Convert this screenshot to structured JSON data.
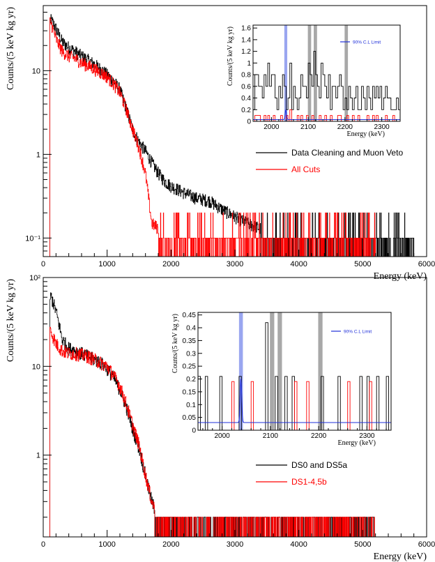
{
  "chart_data": [
    {
      "type": "line",
      "panel": "top",
      "xlabel": "Energy (keV)",
      "ylabel": "Counts/(5 keV kg yr)",
      "xlim": [
        0,
        6000
      ],
      "ylim": [
        0.06,
        60
      ],
      "yscale": "log",
      "x_ticks": [
        "0",
        "1000",
        "2000",
        "3000",
        "4000",
        "5000",
        "6000"
      ],
      "y_ticks": [
        "10⁻¹",
        "1",
        "10"
      ],
      "y_tick_values": [
        0.1,
        1,
        10
      ],
      "legend_position": "center-right",
      "series": [
        {
          "name": "Data Cleaning and Muon Veto",
          "color": "#000000",
          "points": [
            [
              100,
              0
            ],
            [
              130,
              40
            ],
            [
              200,
              32
            ],
            [
              300,
              22
            ],
            [
              400,
              19
            ],
            [
              500,
              17
            ],
            [
              600,
              15
            ],
            [
              700,
              13.5
            ],
            [
              800,
              12
            ],
            [
              900,
              10.5
            ],
            [
              1000,
              9
            ],
            [
              1100,
              7.5
            ],
            [
              1200,
              6
            ],
            [
              1300,
              3.5
            ],
            [
              1400,
              2
            ],
            [
              1500,
              1.4
            ],
            [
              1600,
              1.1
            ],
            [
              1700,
              0.8
            ],
            [
              1800,
              0.6
            ],
            [
              1900,
              0.48
            ],
            [
              2000,
              0.42
            ],
            [
              2200,
              0.35
            ],
            [
              2400,
              0.3
            ],
            [
              2600,
              0.28
            ],
            [
              2800,
              0.22
            ],
            [
              3000,
              0.18
            ],
            [
              3200,
              0.15
            ],
            [
              3400,
              0.13
            ],
            [
              3600,
              0.12
            ],
            [
              4000,
              0.11
            ],
            [
              4500,
              0.1
            ],
            [
              5000,
              0.1
            ],
            [
              5800,
              0.1
            ]
          ]
        },
        {
          "name": "All Cuts",
          "color": "#ff0000",
          "points": [
            [
              100,
              0
            ],
            [
              120,
              38
            ],
            [
              200,
              24
            ],
            [
              300,
              17
            ],
            [
              400,
              15
            ],
            [
              500,
              14
            ],
            [
              600,
              12.5
            ],
            [
              700,
              11.5
            ],
            [
              800,
              10.5
            ],
            [
              900,
              9.5
            ],
            [
              1000,
              8.5
            ],
            [
              1100,
              7
            ],
            [
              1200,
              5.5
            ],
            [
              1300,
              3.5
            ],
            [
              1400,
              2
            ],
            [
              1500,
              1.2
            ],
            [
              1600,
              0.6
            ],
            [
              1650,
              0.3
            ],
            [
              1700,
              0.15
            ],
            [
              2000,
              0.1
            ],
            [
              3000,
              0.1
            ],
            [
              4000,
              0.1
            ],
            [
              5200,
              0.1
            ]
          ]
        }
      ],
      "inset": {
        "xlabel": "Energy (keV)",
        "ylabel": "Counts/(5 keV kg yr)",
        "xlim": [
          1950,
          2350
        ],
        "ylim": [
          0,
          1.65
        ],
        "x_ticks": [
          "2000",
          "2100",
          "2200",
          "2300"
        ],
        "x_tick_values": [
          2000,
          2100,
          2200,
          2300
        ],
        "y_ticks": [
          "0",
          "0.2",
          "0.4",
          "0.6",
          "0.8",
          "1",
          "1.2",
          "1.4",
          "1.6"
        ],
        "y_tick_values": [
          0,
          0.2,
          0.4,
          0.6,
          0.8,
          1,
          1.2,
          1.4,
          1.6
        ],
        "legend": "90% C.L Limit",
        "roi_band": [
          2035,
          2043
        ],
        "excluded_bands": [
          [
            2099,
            2108
          ],
          [
            2115,
            2124
          ],
          [
            2199,
            2208
          ]
        ],
        "black_hist": [
          0.2,
          0.8,
          0.8,
          0.6,
          0.6,
          0.4,
          0.8,
          0.6,
          1,
          0.6,
          0.8,
          0.8,
          0.4,
          0.2,
          0.6,
          0.4,
          0.8,
          0.6,
          0.2,
          0.4,
          1,
          0.2,
          0.6,
          0.4,
          0.2,
          0.4,
          0.8,
          0.6,
          0.6,
          0.4,
          1,
          0.8,
          0.6,
          1.2,
          0.8,
          0.6,
          0.4,
          1,
          0.8,
          0.6,
          0.4,
          0.8,
          0.2,
          0.6,
          0.6,
          0.4,
          0.6,
          0.8,
          0.6,
          0.2,
          0.4,
          0.2,
          0.6,
          0.4,
          0.2,
          0.4,
          0.6,
          0.2,
          0.2,
          0.6,
          0.4,
          0.2,
          0.6,
          0.4,
          0.2,
          0.6,
          0.4,
          0.6,
          0.4,
          0.6,
          0.2,
          0.4,
          0.6,
          0.4,
          0.4,
          0.2,
          0.2,
          0.2,
          0.4,
          0.2
        ],
        "red_hist": [
          0,
          0.1,
          0.1,
          0.1,
          0,
          0,
          0.1,
          0,
          0.1,
          0,
          0,
          0.1,
          0,
          0,
          0,
          0.1,
          0,
          0,
          0.1,
          0,
          0.2,
          0,
          0,
          0,
          0.1,
          0,
          0.1,
          0,
          0,
          0.1,
          0,
          0,
          0.1,
          0,
          0,
          0,
          0.1,
          0,
          0,
          0.1,
          0,
          0,
          0.1,
          0,
          0,
          0,
          0.1,
          0.1,
          0,
          0,
          0,
          0.1,
          0,
          0,
          0.1,
          0,
          0,
          0.1,
          0,
          0,
          0,
          0,
          0.1,
          0,
          0,
          0.1,
          0,
          0.1,
          0,
          0,
          0,
          0,
          0.1,
          0,
          0,
          0,
          0.1,
          0,
          0,
          0
        ],
        "limit_level": 0.03,
        "limit_peak": {
          "center": 2039,
          "height": 0.17
        }
      }
    },
    {
      "type": "line",
      "panel": "bottom",
      "xlabel": "Energy (keV)",
      "ylabel": "Counts/(5 keV kg yr)",
      "xlim": [
        0,
        6000
      ],
      "ylim": [
        0.12,
        100
      ],
      "yscale": "log",
      "x_ticks": [
        "0",
        "1000",
        "2000",
        "3000",
        "4000",
        "5000",
        "6000"
      ],
      "y_ticks": [
        "1",
        "10",
        "10²"
      ],
      "y_tick_values": [
        1,
        10,
        100
      ],
      "legend_position": "center-right",
      "series": [
        {
          "name": "DS0 and DS5a",
          "color": "#000000",
          "points": [
            [
              100,
              0
            ],
            [
              130,
              60
            ],
            [
              200,
              42
            ],
            [
              300,
              20
            ],
            [
              400,
              16
            ],
            [
              500,
              15
            ],
            [
              600,
              14
            ],
            [
              700,
              13
            ],
            [
              800,
              12
            ],
            [
              900,
              11
            ],
            [
              1000,
              9.5
            ],
            [
              1100,
              7.5
            ],
            [
              1200,
              5.5
            ],
            [
              1300,
              3.5
            ],
            [
              1400,
              2
            ],
            [
              1500,
              1.2
            ],
            [
              1600,
              0.6
            ],
            [
              1700,
              0.3
            ],
            [
              1800,
              0.2
            ],
            [
              2000,
              0.2
            ],
            [
              3000,
              0.2
            ],
            [
              4000,
              0.2
            ],
            [
              5200,
              0.2
            ]
          ]
        },
        {
          "name": "DS1-4,5b",
          "color": "#ff0000",
          "points": [
            [
              100,
              0
            ],
            [
              120,
              25
            ],
            [
              200,
              18
            ],
            [
              300,
              15
            ],
            [
              400,
              14
            ],
            [
              500,
              14
            ],
            [
              600,
              13.5
            ],
            [
              700,
              13
            ],
            [
              800,
              12
            ],
            [
              900,
              11
            ],
            [
              1000,
              10
            ],
            [
              1100,
              8
            ],
            [
              1200,
              6
            ],
            [
              1300,
              3.8
            ],
            [
              1400,
              2.2
            ],
            [
              1500,
              1.3
            ],
            [
              1600,
              0.6
            ],
            [
              1700,
              0.3
            ],
            [
              1800,
              0.2
            ],
            [
              2500,
              0.2
            ],
            [
              4500,
              0.2
            ],
            [
              5200,
              0.2
            ]
          ]
        }
      ],
      "inset": {
        "xlabel": "Energy (keV)",
        "ylabel": "Counts/(5 keV kg yr)",
        "xlim": [
          1950,
          2350
        ],
        "ylim": [
          0,
          0.46
        ],
        "x_ticks": [
          "2000",
          "2100",
          "2200",
          "2300"
        ],
        "x_tick_values": [
          2000,
          2100,
          2200,
          2300
        ],
        "y_ticks": [
          "0",
          "0.05",
          "0.1",
          "0.15",
          "0.2",
          "0.25",
          "0.3",
          "0.35",
          "0.4",
          "0.45"
        ],
        "y_tick_values": [
          0,
          0.05,
          0.1,
          0.15,
          0.2,
          0.25,
          0.3,
          0.35,
          0.4,
          0.45
        ],
        "legend": "90% C.L Limit",
        "roi_band": [
          2035,
          2043
        ],
        "excluded_bands": [
          [
            2099,
            2108
          ],
          [
            2115,
            2124
          ],
          [
            2199,
            2208
          ]
        ],
        "black_hist": [
          0.21,
          0,
          0,
          0.21,
          0,
          0,
          0,
          0,
          0,
          0.21,
          0,
          0,
          0,
          0,
          0,
          0,
          0,
          0.21,
          0,
          0,
          0,
          0,
          0,
          0,
          0,
          0,
          0,
          0,
          0.42,
          0,
          0,
          0,
          0.21,
          0,
          0,
          0,
          0.21,
          0,
          0,
          0.21,
          0,
          0,
          0,
          0,
          0,
          0,
          0,
          0,
          0,
          0,
          0,
          0.21,
          0,
          0,
          0,
          0,
          0,
          0,
          0.21,
          0,
          0,
          0,
          0,
          0,
          0,
          0,
          0,
          0.21,
          0,
          0,
          0.21,
          0,
          0,
          0,
          0.21,
          0,
          0,
          0,
          0.21,
          0
        ],
        "red_hist": [
          0,
          0,
          0,
          0,
          0,
          0,
          0,
          0,
          0,
          0,
          0,
          0,
          0,
          0,
          0.19,
          0,
          0,
          0,
          0,
          0,
          0,
          0,
          0.19,
          0,
          0,
          0,
          0,
          0,
          0,
          0,
          0,
          0,
          0,
          0,
          0,
          0,
          0,
          0,
          0,
          0,
          0.19,
          0,
          0,
          0,
          0,
          0.19,
          0,
          0,
          0,
          0,
          0,
          0,
          0,
          0,
          0,
          0,
          0,
          0,
          0,
          0,
          0,
          0,
          0.19,
          0,
          0,
          0,
          0,
          0,
          0,
          0,
          0,
          0.19,
          0,
          0,
          0,
          0,
          0,
          0,
          0,
          0
        ],
        "limit_level": 0.03,
        "limit_peak": {
          "center": 2039,
          "height": 0.17
        }
      }
    }
  ]
}
